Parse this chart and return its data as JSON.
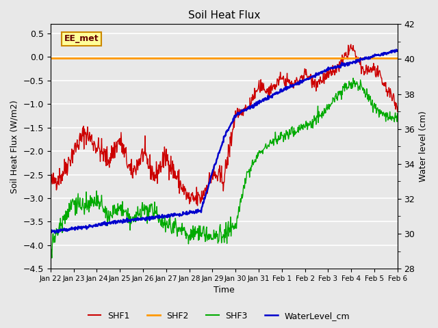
{
  "title": "Soil Heat Flux",
  "ylabel_left": "Soil Heat Flux (W/m2)",
  "ylabel_right": "Water level (cm)",
  "xlabel": "Time",
  "ylim_left": [
    -4.5,
    0.7
  ],
  "ylim_right": [
    28,
    42
  ],
  "bg_color": "#e8e8e8",
  "annotation_text": "EE_met",
  "annotation_bg": "#ffff99",
  "annotation_border": "#cc8800",
  "x_labels": [
    "Jan 22",
    "Jan 23",
    "Jan 24",
    "Jan 25",
    "Jan 26",
    "Jan 27",
    "Jan 28",
    "Jan 29",
    "Jan 30",
    "Jan 31",
    "Feb 1",
    "Feb 2",
    "Feb 3",
    "Feb 4",
    "Feb 5",
    "Feb 6"
  ],
  "colors": {
    "SHF1": "#cc0000",
    "SHF2": "#ff9900",
    "SHF3": "#00aa00",
    "WaterLevel": "#0000cc"
  },
  "legend_labels": [
    "SHF1",
    "SHF2",
    "SHF3",
    "WaterLevel_cm"
  ],
  "shf1_keypoints": [
    [
      0,
      -2.7
    ],
    [
      0.5,
      -2.5
    ],
    [
      1.0,
      -2.0
    ],
    [
      1.5,
      -1.6
    ],
    [
      2.0,
      -1.9
    ],
    [
      2.5,
      -2.2
    ],
    [
      3.0,
      -1.75
    ],
    [
      3.5,
      -2.5
    ],
    [
      4.0,
      -2.05
    ],
    [
      4.5,
      -2.55
    ],
    [
      5.0,
      -2.1
    ],
    [
      5.5,
      -2.6
    ],
    [
      6.0,
      -3.05
    ],
    [
      6.5,
      -3.0
    ],
    [
      7.0,
      -2.5
    ],
    [
      7.5,
      -2.6
    ],
    [
      8.0,
      -1.2
    ],
    [
      8.5,
      -1.1
    ],
    [
      9.0,
      -0.65
    ],
    [
      9.5,
      -0.7
    ],
    [
      10.0,
      -0.45
    ],
    [
      10.5,
      -0.6
    ],
    [
      11.0,
      -0.35
    ],
    [
      11.5,
      -0.55
    ],
    [
      12.0,
      -0.4
    ],
    [
      12.5,
      -0.2
    ],
    [
      13.0,
      0.22
    ],
    [
      13.5,
      -0.3
    ],
    [
      14.0,
      -0.25
    ],
    [
      14.5,
      -0.65
    ],
    [
      15.0,
      -1.05
    ]
  ],
  "shf3_keypoints": [
    [
      0,
      -4.05
    ],
    [
      0.5,
      -3.5
    ],
    [
      1.0,
      -3.05
    ],
    [
      1.5,
      -3.2
    ],
    [
      2.0,
      -3.05
    ],
    [
      2.5,
      -3.4
    ],
    [
      3.0,
      -3.2
    ],
    [
      3.5,
      -3.5
    ],
    [
      4.0,
      -3.25
    ],
    [
      4.5,
      -3.3
    ],
    [
      5.0,
      -3.55
    ],
    [
      5.5,
      -3.6
    ],
    [
      6.0,
      -3.8
    ],
    [
      6.5,
      -3.7
    ],
    [
      7.0,
      -3.85
    ],
    [
      7.5,
      -3.75
    ],
    [
      8.0,
      -3.6
    ],
    [
      8.5,
      -2.5
    ],
    [
      9.0,
      -2.05
    ],
    [
      9.5,
      -1.8
    ],
    [
      10.0,
      -1.7
    ],
    [
      10.5,
      -1.6
    ],
    [
      11.0,
      -1.45
    ],
    [
      11.5,
      -1.3
    ],
    [
      12.0,
      -1.1
    ],
    [
      12.5,
      -0.75
    ],
    [
      13.0,
      -0.55
    ],
    [
      13.5,
      -0.65
    ],
    [
      14.0,
      -1.05
    ],
    [
      14.5,
      -1.25
    ],
    [
      15.0,
      -1.3
    ]
  ],
  "water_keypoints": [
    [
      0,
      30.1
    ],
    [
      1,
      30.3
    ],
    [
      2,
      30.5
    ],
    [
      3,
      30.7
    ],
    [
      4,
      30.85
    ],
    [
      5,
      31.0
    ],
    [
      6,
      31.2
    ],
    [
      6.5,
      31.3
    ],
    [
      7.0,
      33.5
    ],
    [
      7.5,
      35.5
    ],
    [
      8.0,
      36.8
    ],
    [
      9.0,
      37.5
    ],
    [
      10.0,
      38.2
    ],
    [
      11.0,
      38.8
    ],
    [
      12.0,
      39.4
    ],
    [
      13.0,
      39.8
    ],
    [
      14.0,
      40.2
    ],
    [
      15.0,
      40.5
    ]
  ]
}
